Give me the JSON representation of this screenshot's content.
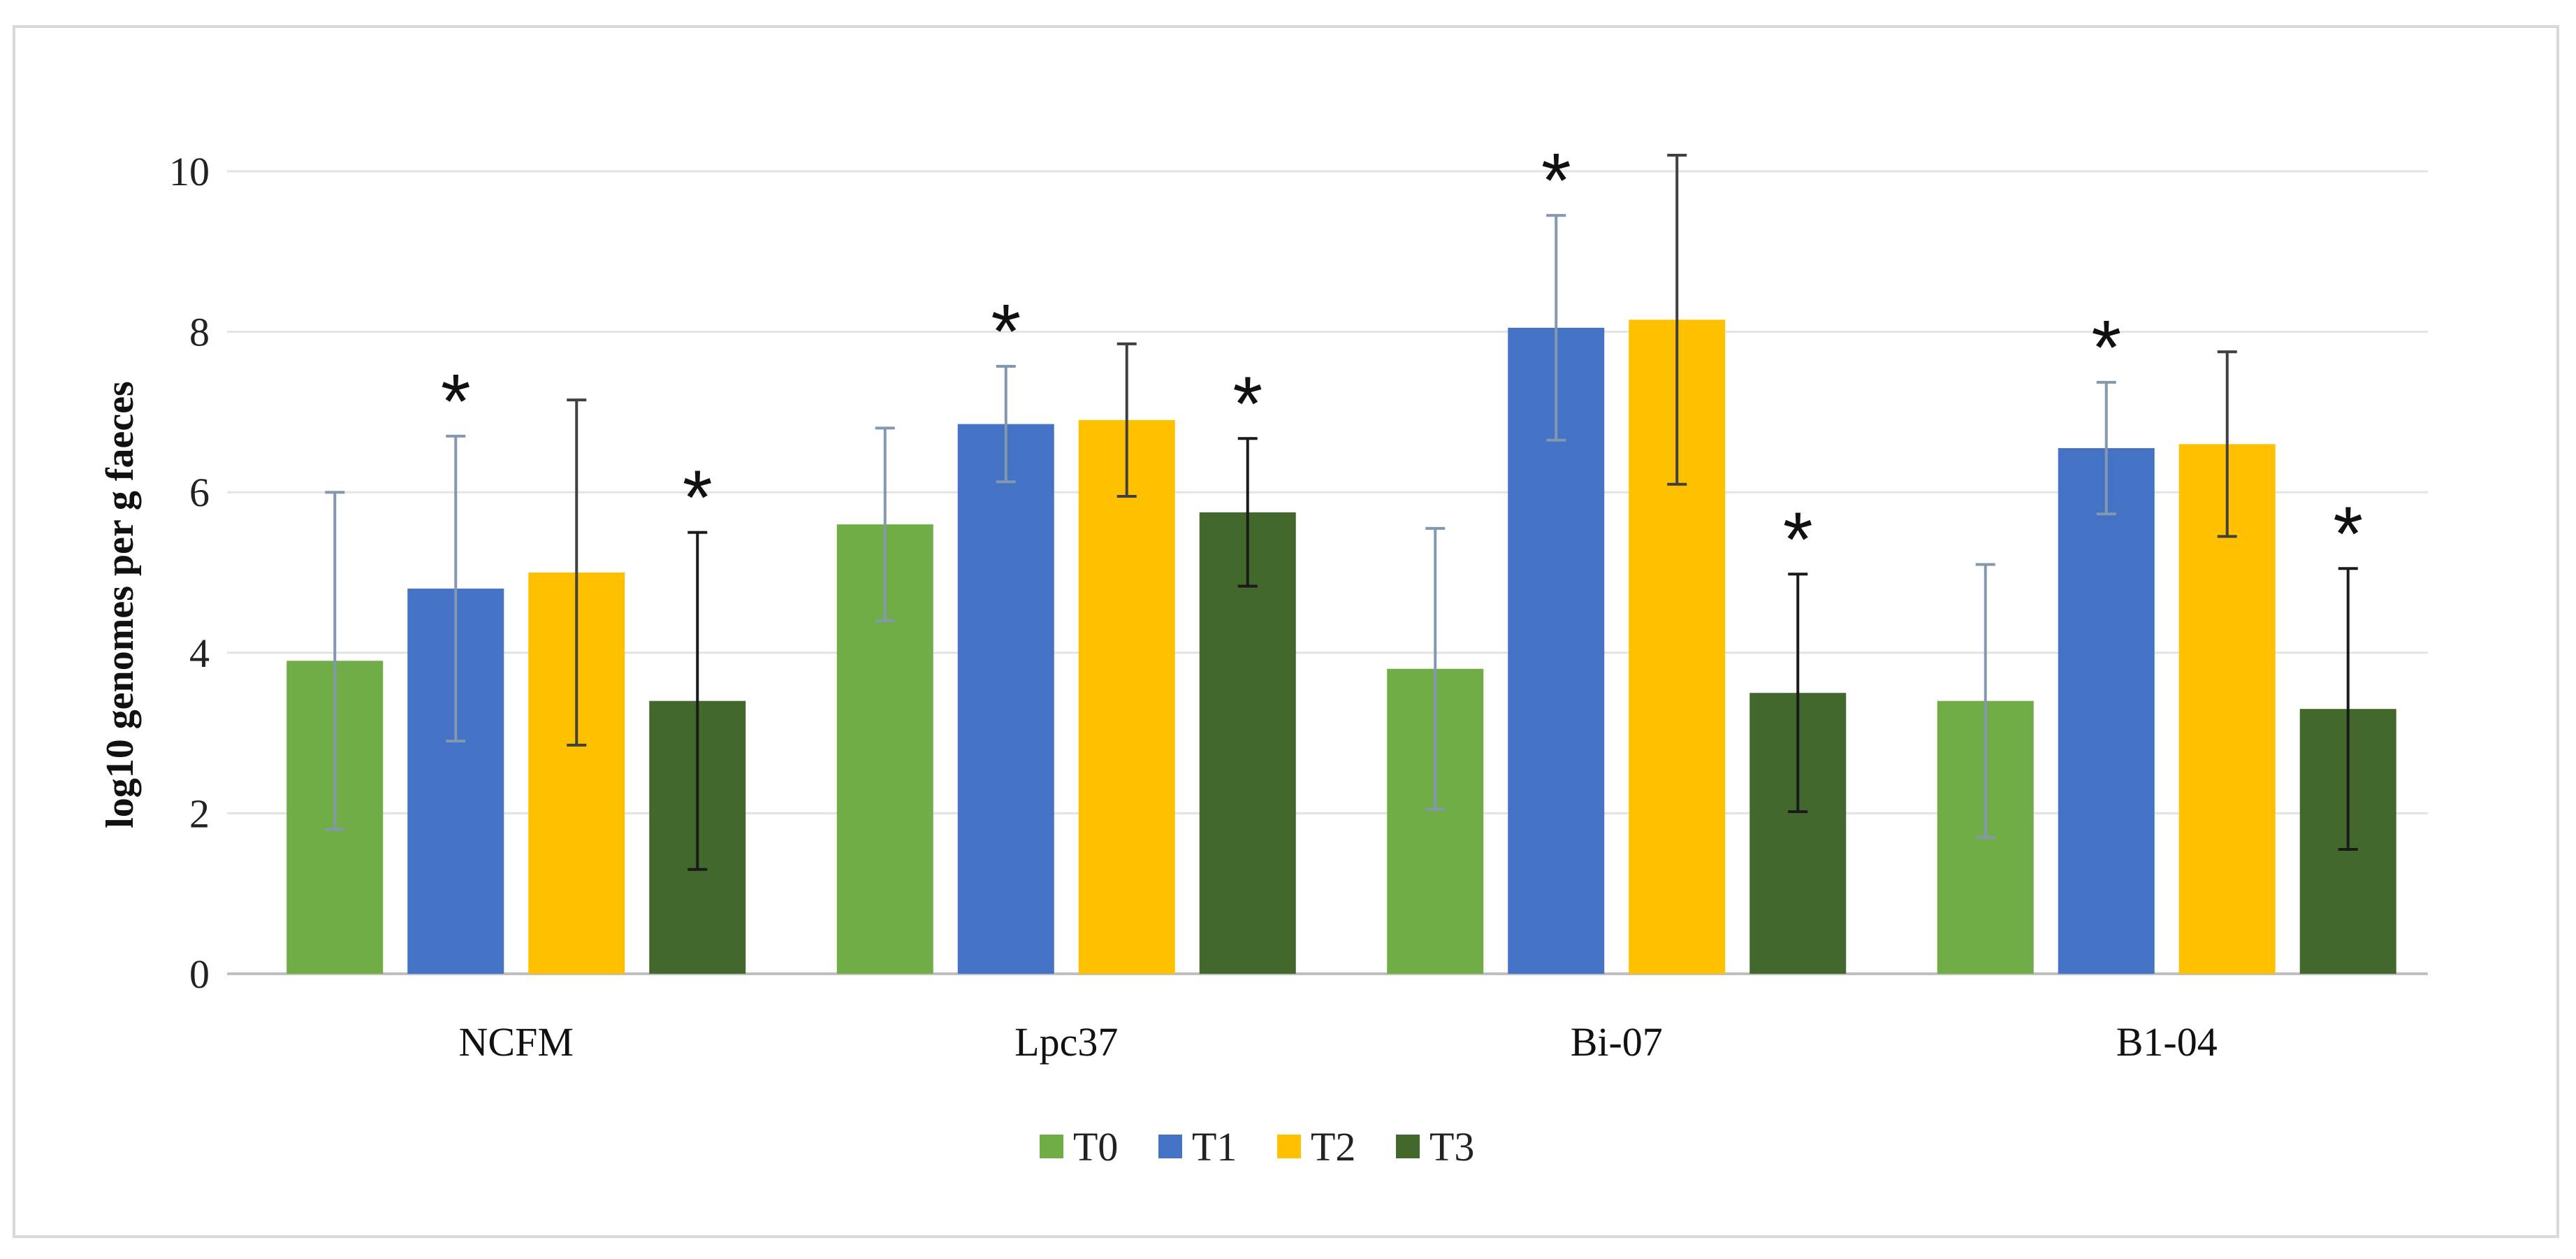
{
  "chart_data": {
    "type": "bar",
    "title": "",
    "xlabel": "",
    "ylabel": "log10 genomes per g faeces",
    "ylim": [
      0,
      10
    ],
    "yticks": [
      "0",
      "2",
      "4",
      "6",
      "8",
      "10"
    ],
    "grid": true,
    "legend_position": "bottom",
    "categories": [
      "NCFM",
      "Lpc37",
      "Bi-07",
      "B1-04"
    ],
    "significance_marker": "*",
    "series": [
      {
        "name": "T0",
        "color": "#70ad47",
        "error_color": "#8497b0",
        "values": [
          3.9,
          5.6,
          3.8,
          3.4
        ],
        "errors": [
          2.1,
          1.2,
          1.75,
          1.7
        ],
        "significant": [
          false,
          false,
          false,
          false
        ]
      },
      {
        "name": "T1",
        "color": "#4472c4",
        "error_color": "#8497b0",
        "values": [
          4.8,
          6.85,
          8.05,
          6.55
        ],
        "errors": [
          1.9,
          0.72,
          1.4,
          0.82
        ],
        "significant": [
          true,
          true,
          true,
          true
        ]
      },
      {
        "name": "T2",
        "color": "#ffc000",
        "error_color": "#404040",
        "values": [
          5.0,
          6.9,
          8.15,
          6.6
        ],
        "errors": [
          2.15,
          0.95,
          2.05,
          1.15
        ],
        "significant": [
          false,
          false,
          false,
          false
        ]
      },
      {
        "name": "T3",
        "color": "#43682b",
        "error_color": "#1a1a1a",
        "values": [
          3.4,
          5.75,
          3.5,
          3.3
        ],
        "errors": [
          2.1,
          0.92,
          1.48,
          1.75
        ],
        "significant": [
          true,
          true,
          true,
          true
        ]
      }
    ]
  }
}
